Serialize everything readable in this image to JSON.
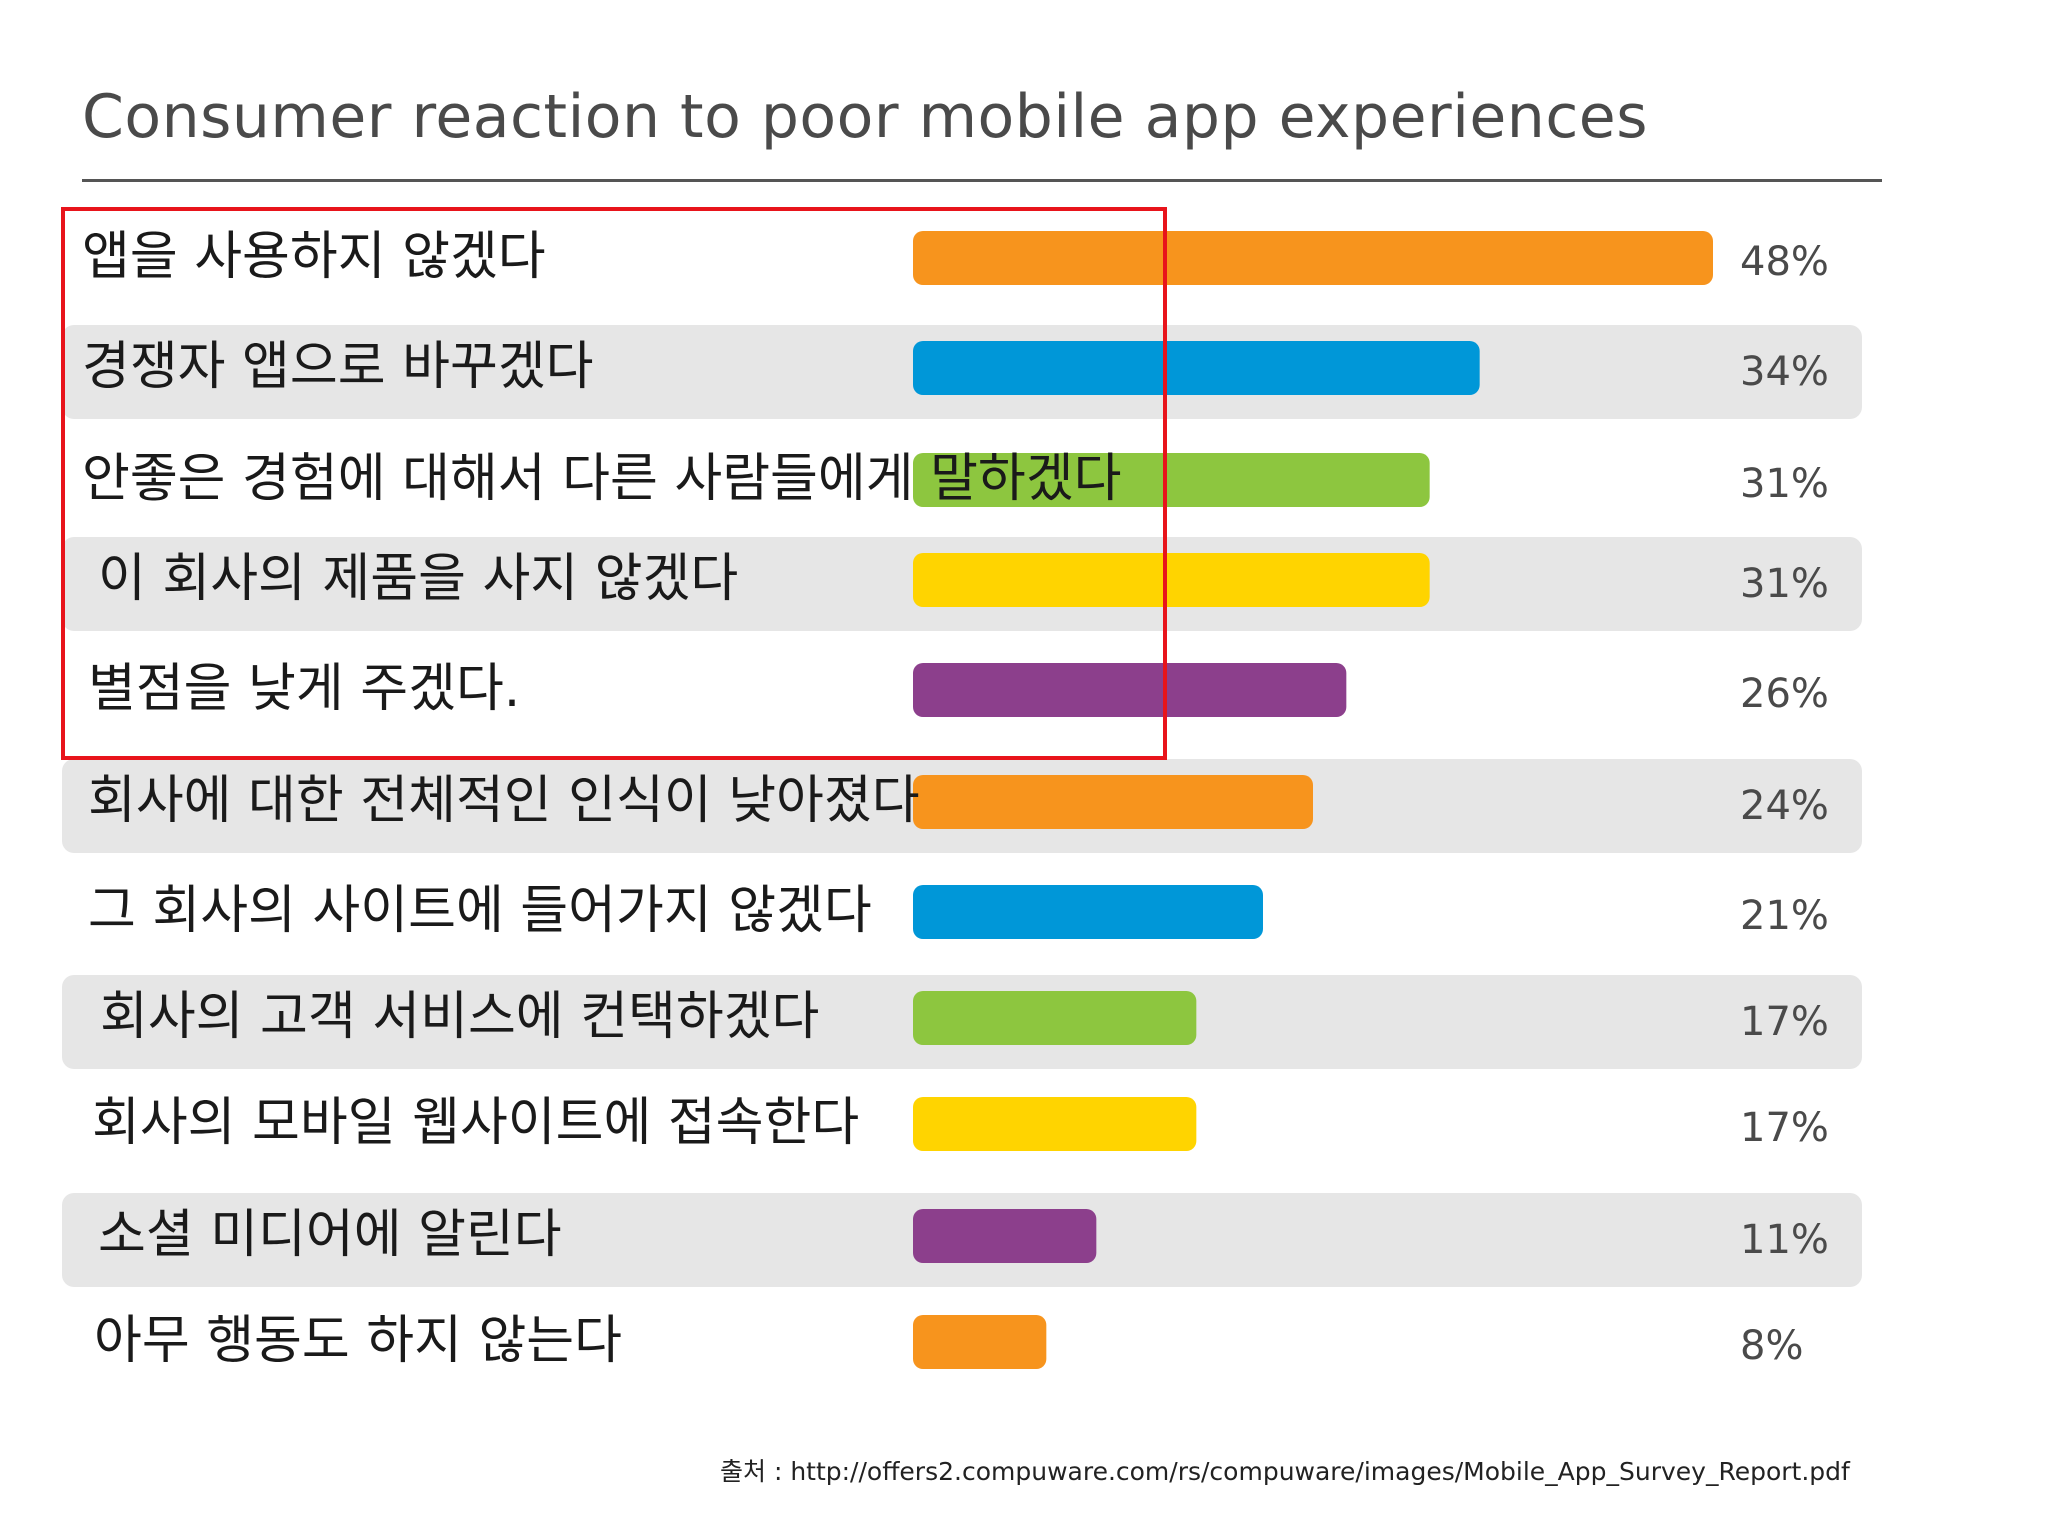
{
  "chart_data": {
    "type": "bar",
    "orientation": "horizontal",
    "title": "Consumer reaction to poor mobile app experiences",
    "categories": [
      "앱을 사용하지 않겠다",
      "경쟁자 앱으로 바꾸겠다",
      "안좋은 경험에 대해서 다른 사람들에게 말하겠다",
      "이 회사의 제품을 사지 않겠다",
      "별점을 낮게 주겠다.",
      "회사에 대한 전체적인 인식이 낮아졌다",
      "그 회사의 사이트에 들어가지 않겠다",
      "회사의 고객 서비스에 컨택하겠다",
      "회사의 모바일 웹사이트에 접속한다",
      "소셜 미디어에 알린다",
      "아무 행동도 하지 않는다"
    ],
    "values": [
      48,
      34,
      31,
      31,
      26,
      24,
      21,
      17,
      17,
      11,
      8
    ],
    "value_labels": [
      "48%",
      "34%",
      "31%",
      "31%",
      "26%",
      "24%",
      "21%",
      "17%",
      "17%",
      "11%",
      "8%"
    ],
    "bar_colors": [
      "#f7941d",
      "#0097d8",
      "#8dc63f",
      "#ffd400",
      "#8c3f8c",
      "#f7941d",
      "#0097d8",
      "#8dc63f",
      "#ffd400",
      "#8c3f8c",
      "#f7941d"
    ],
    "xlim": [
      0,
      48
    ],
    "xlabel": "",
    "ylabel": "",
    "grid": false,
    "highlighted_categories": [
      0,
      1,
      2,
      3,
      4
    ],
    "highlight_color": "#e8141b",
    "stripe_color": "#e6e6e6"
  },
  "source": "출처 : http://offers2.compuware.com/rs/compuware/images/Mobile_App_Survey_Report.pdf"
}
